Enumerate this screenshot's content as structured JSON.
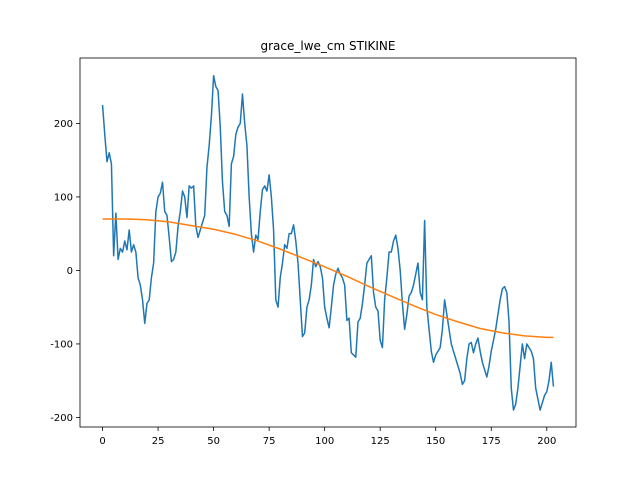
{
  "chart_data": {
    "type": "line",
    "title": "grace_lwe_cm STIKINE",
    "xlim": [
      -10.15,
      213.15
    ],
    "ylim": [
      -213,
      289
    ],
    "xticks": [
      0,
      25,
      50,
      75,
      100,
      125,
      150,
      175,
      200
    ],
    "yticks": [
      -200,
      -100,
      0,
      100,
      200
    ],
    "grid": false,
    "series": [
      {
        "color": "#1f77b4",
        "x": [
          0,
          1,
          2,
          3,
          4,
          5,
          6,
          7,
          8,
          9,
          10,
          11,
          12,
          13,
          14,
          15,
          16,
          17,
          18,
          19,
          20,
          21,
          22,
          23,
          24,
          25,
          26,
          27,
          28,
          29,
          30,
          31,
          32,
          33,
          34,
          35,
          36,
          37,
          38,
          39,
          40,
          41,
          42,
          43,
          44,
          45,
          46,
          47,
          48,
          49,
          50,
          51,
          52,
          53,
          54,
          55,
          56,
          57,
          58,
          59,
          60,
          61,
          62,
          63,
          64,
          65,
          66,
          67,
          68,
          69,
          70,
          71,
          72,
          73,
          74,
          75,
          76,
          77,
          78,
          79,
          80,
          81,
          82,
          83,
          84,
          85,
          86,
          87,
          88,
          89,
          90,
          91,
          92,
          93,
          94,
          95,
          96,
          97,
          98,
          99,
          100,
          101,
          102,
          103,
          104,
          105,
          106,
          107,
          108,
          109,
          110,
          111,
          112,
          113,
          114,
          115,
          116,
          117,
          118,
          119,
          120,
          121,
          122,
          123,
          124,
          125,
          126,
          127,
          128,
          129,
          130,
          131,
          132,
          133,
          134,
          135,
          136,
          137,
          138,
          139,
          140,
          141,
          142,
          143,
          144,
          145,
          146,
          147,
          148,
          149,
          150,
          151,
          152,
          153,
          154,
          155,
          156,
          157,
          158,
          159,
          160,
          161,
          162,
          163,
          164,
          165,
          166,
          167,
          168,
          169,
          170,
          171,
          172,
          173,
          174,
          175,
          176,
          177,
          178,
          179,
          180,
          181,
          182,
          183,
          184,
          185,
          186,
          187,
          188,
          189,
          190,
          191,
          192,
          193,
          194,
          195,
          196,
          197,
          198,
          199,
          200,
          201,
          202,
          203
        ],
        "values": [
          225,
          185,
          148,
          160,
          145,
          20,
          78,
          15,
          30,
          25,
          40,
          28,
          55,
          25,
          35,
          25,
          -10,
          -20,
          -40,
          -72,
          -45,
          -40,
          -10,
          10,
          80,
          100,
          105,
          120,
          80,
          75,
          45,
          12,
          15,
          25,
          60,
          80,
          108,
          100,
          72,
          115,
          112,
          115,
          60,
          45,
          55,
          65,
          75,
          140,
          170,
          210,
          265,
          250,
          245,
          195,
          120,
          80,
          75,
          60,
          145,
          155,
          185,
          195,
          200,
          240,
          200,
          170,
          100,
          50,
          25,
          48,
          42,
          80,
          110,
          115,
          108,
          130,
          100,
          55,
          -40,
          -50,
          -10,
          10,
          35,
          30,
          50,
          50,
          62,
          40,
          10,
          -40,
          -90,
          -85,
          -50,
          -40,
          -20,
          15,
          5,
          12,
          5,
          -10,
          -50,
          -65,
          -78,
          -50,
          -20,
          -5,
          3,
          -5,
          -10,
          -20,
          -68,
          -65,
          -112,
          -115,
          -118,
          -70,
          -65,
          -45,
          -20,
          10,
          15,
          20,
          -30,
          -50,
          -55,
          -95,
          -105,
          -40,
          -10,
          25,
          25,
          40,
          48,
          30,
          0,
          -45,
          -80,
          -60,
          -35,
          -30,
          -20,
          -5,
          10,
          -30,
          -40,
          68,
          -50,
          -80,
          -110,
          -125,
          -115,
          -110,
          -105,
          -80,
          -40,
          -60,
          -80,
          -100,
          -110,
          -120,
          -130,
          -140,
          -155,
          -150,
          -120,
          -100,
          -98,
          -112,
          -100,
          -92,
          -110,
          -125,
          -135,
          -145,
          -130,
          -110,
          -95,
          -80,
          -60,
          -40,
          -25,
          -22,
          -30,
          -70,
          -160,
          -190,
          -182,
          -160,
          -130,
          -100,
          -120,
          -100,
          -105,
          -110,
          -120,
          -160,
          -175,
          -190,
          -180,
          -170,
          -165,
          -150,
          -125,
          -158
        ]
      },
      {
        "color": "#ff7f0e",
        "x": [
          0,
          10,
          20,
          30,
          40,
          50,
          60,
          70,
          80,
          90,
          100,
          110,
          120,
          130,
          140,
          150,
          160,
          170,
          180,
          190,
          200,
          203
        ],
        "values": [
          70,
          70,
          69,
          66,
          61,
          56,
          49,
          40,
          29,
          17,
          5,
          -8,
          -22,
          -35,
          -48,
          -60,
          -70,
          -79,
          -85,
          -89,
          -91,
          -91
        ]
      }
    ]
  }
}
